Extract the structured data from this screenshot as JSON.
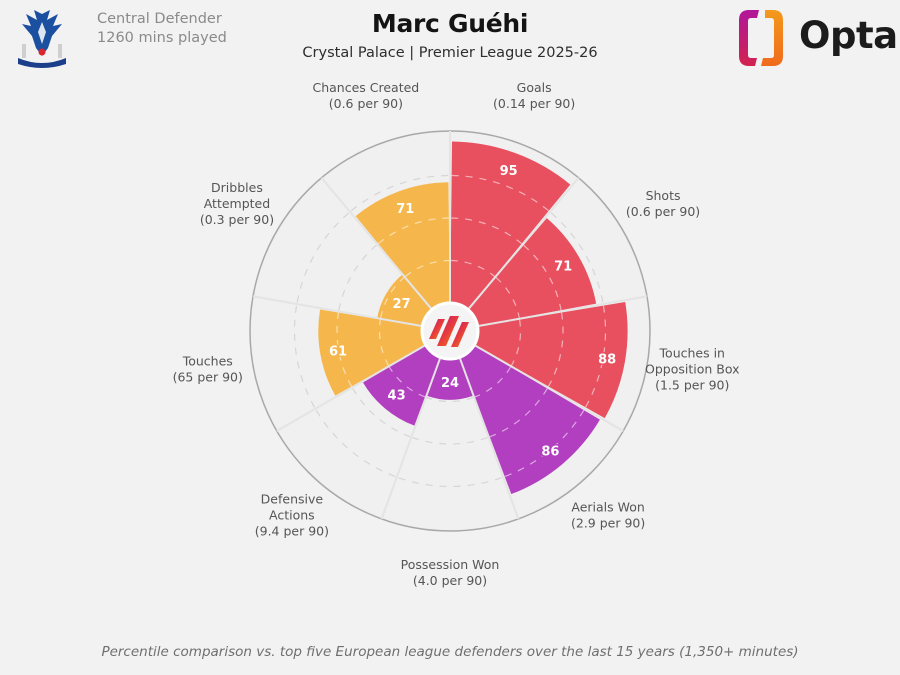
{
  "header": {
    "player_name": "Marc Guéhi",
    "subtitle": "Crystal Palace | Premier League 2025-26",
    "position": "Central Defender",
    "minutes": "1260 mins played",
    "club_badge_icon": "crystal-palace-eagle-badge",
    "brand_logo_text": "Opta",
    "brand_logo_icon": "opta-bracket-logo"
  },
  "footer": {
    "note": "Percentile comparison vs. top five European league defenders over the last 15 years (1,350+ minutes)"
  },
  "colors": {
    "background": "#f2f2f2",
    "attacking": "#e8505f",
    "defending": "#b23fc0",
    "possession": "#f5b74c",
    "empty_slice": "#efefef",
    "outer_ring": "#a8a8a8",
    "label_text": "#555555"
  },
  "chart_data": {
    "type": "pie",
    "subtype": "polar-bar (pizza chart)",
    "title": "Marc Guéhi",
    "subtitle": "Crystal Palace | Premier League 2025-26",
    "value_scale": [
      0,
      100
    ],
    "value_unit": "percentile",
    "gridlines": [
      25,
      50,
      75
    ],
    "start_angle_deg": 0,
    "direction": "clockwise",
    "categories": [
      "Goals",
      "Shots",
      "Touches in Opposition Box",
      "Aerials Won",
      "Possession Won",
      "Defensive Actions",
      "Touches",
      "Dribbles Attempted",
      "Chances Created"
    ],
    "slices": [
      {
        "label": [
          "Goals"
        ],
        "per90": "(0.14 per 90)",
        "value": 95,
        "group": "attacking"
      },
      {
        "label": [
          "Shots"
        ],
        "per90": "(0.6 per 90)",
        "value": 71,
        "group": "attacking"
      },
      {
        "label": [
          "Touches in",
          "Opposition Box"
        ],
        "per90": "(1.5 per 90)",
        "value": 88,
        "group": "attacking"
      },
      {
        "label": [
          "Aerials Won"
        ],
        "per90": "(2.9 per 90)",
        "value": 86,
        "group": "defending"
      },
      {
        "label": [
          "Possession Won"
        ],
        "per90": "(4.0 per 90)",
        "value": 24,
        "group": "defending"
      },
      {
        "label": [
          "Defensive",
          "Actions"
        ],
        "per90": "(9.4 per 90)",
        "value": 43,
        "group": "defending"
      },
      {
        "label": [
          "Touches"
        ],
        "per90": "(65 per 90)",
        "value": 61,
        "group": "possession"
      },
      {
        "label": [
          "Dribbles",
          "Attempted"
        ],
        "per90": "(0.3 per 90)",
        "value": 27,
        "group": "possession"
      },
      {
        "label": [
          "Chances Created"
        ],
        "per90": "(0.6 per 90)",
        "value": 71,
        "group": "possession"
      }
    ],
    "legend": {
      "attacking": "red",
      "defending": "purple",
      "possession": "orange"
    }
  }
}
